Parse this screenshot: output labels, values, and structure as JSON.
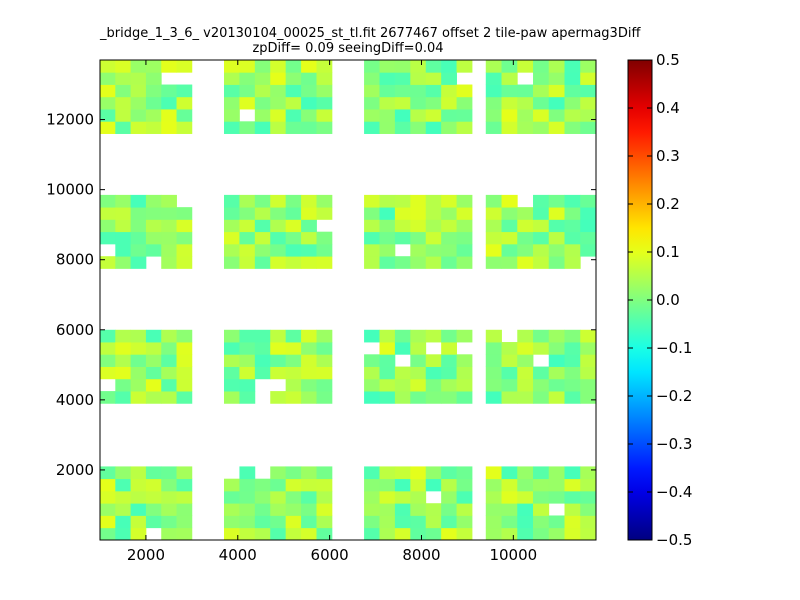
{
  "chart_data": {
    "type": "heatmap",
    "title": "_bridge_1_3_6_ v20130104_00025_st_tl.fit 2677467 offset 2 tile-paw apermag3Diff",
    "subtitle": "zpDiff= 0.09 seeingDiff=0.04",
    "xlabel": "",
    "ylabel": "",
    "xlim": [
      1000,
      11800
    ],
    "ylim": [
      0,
      13700
    ],
    "xticks": [
      "2000",
      "4000",
      "6000",
      "8000",
      "10000"
    ],
    "yticks": [
      "2000",
      "4000",
      "6000",
      "8000",
      "10000",
      "12000"
    ],
    "colorbar": {
      "min": -0.5,
      "max": 0.5,
      "ticks": [
        "0.5",
        "0.4",
        "0.3",
        "0.2",
        "0.1",
        "0.0",
        "−0.1",
        "−0.2",
        "−0.3",
        "−0.4",
        "−0.5"
      ],
      "colormap": "jet"
    },
    "cell_size": 340,
    "blocks": [
      {
        "x": [
          1000,
          3000
        ],
        "y": [
          0,
          2100
        ]
      },
      {
        "x": [
          3700,
          6050
        ],
        "y": [
          0,
          2100
        ]
      },
      {
        "x": [
          6750,
          9100
        ],
        "y": [
          0,
          2100
        ]
      },
      {
        "x": [
          9400,
          11800
        ],
        "y": [
          0,
          2100
        ]
      },
      {
        "x": [
          1000,
          3000
        ],
        "y": [
          3900,
          6000
        ]
      },
      {
        "x": [
          3700,
          6050
        ],
        "y": [
          3900,
          6000
        ]
      },
      {
        "x": [
          6750,
          9100
        ],
        "y": [
          3900,
          6000
        ]
      },
      {
        "x": [
          9400,
          11800
        ],
        "y": [
          3900,
          6000
        ]
      },
      {
        "x": [
          1000,
          3000
        ],
        "y": [
          7750,
          9850
        ]
      },
      {
        "x": [
          3700,
          6050
        ],
        "y": [
          7750,
          9850
        ]
      },
      {
        "x": [
          6750,
          9100
        ],
        "y": [
          7750,
          9850
        ]
      },
      {
        "x": [
          9400,
          11800
        ],
        "y": [
          7750,
          9850
        ]
      },
      {
        "x": [
          1000,
          3000
        ],
        "y": [
          11600,
          13700
        ]
      },
      {
        "x": [
          3700,
          6050
        ],
        "y": [
          11600,
          13700
        ]
      },
      {
        "x": [
          6750,
          9100
        ],
        "y": [
          11600,
          13700
        ]
      },
      {
        "x": [
          9400,
          11800
        ],
        "y": [
          11600,
          13700
        ]
      }
    ],
    "typical_value": 0.02,
    "value_range": [
      -0.06,
      0.1
    ]
  }
}
